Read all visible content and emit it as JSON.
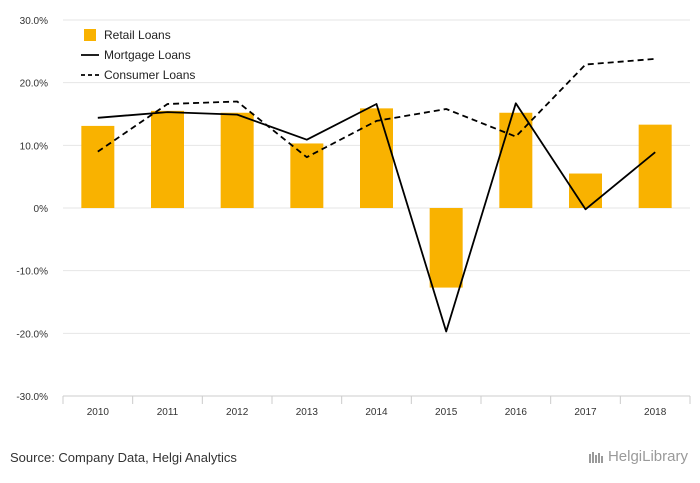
{
  "chart_data": {
    "type": "bar",
    "categories": [
      "2010",
      "2011",
      "2012",
      "2013",
      "2014",
      "2015",
      "2016",
      "2017",
      "2018"
    ],
    "series": [
      {
        "name": "Retail Loans",
        "kind": "bar",
        "color": "#F9B200",
        "values": [
          13.1,
          15.5,
          15.2,
          10.3,
          15.9,
          -12.7,
          15.2,
          5.5,
          13.3
        ]
      },
      {
        "name": "Mortgage Loans",
        "kind": "line",
        "style": "solid",
        "color": "#000000",
        "values": [
          14.4,
          15.3,
          14.9,
          10.9,
          16.6,
          -19.7,
          16.7,
          -0.2,
          8.9
        ]
      },
      {
        "name": "Consumer Loans",
        "kind": "line",
        "style": "dashed",
        "color": "#000000",
        "values": [
          9.0,
          16.6,
          17.0,
          8.1,
          13.9,
          15.8,
          11.4,
          22.9,
          23.8
        ]
      }
    ],
    "y_ticks": [
      "30.0%",
      "20.0%",
      "10.0%",
      "0%",
      "-10.0%",
      "-20.0%",
      "-30.0%"
    ],
    "ylim": [
      -30,
      30
    ],
    "grid": true,
    "legend": "top-left"
  },
  "footer": {
    "source": "Source: Company Data, Helgi Analytics",
    "brand": "HelgiLibrary"
  }
}
